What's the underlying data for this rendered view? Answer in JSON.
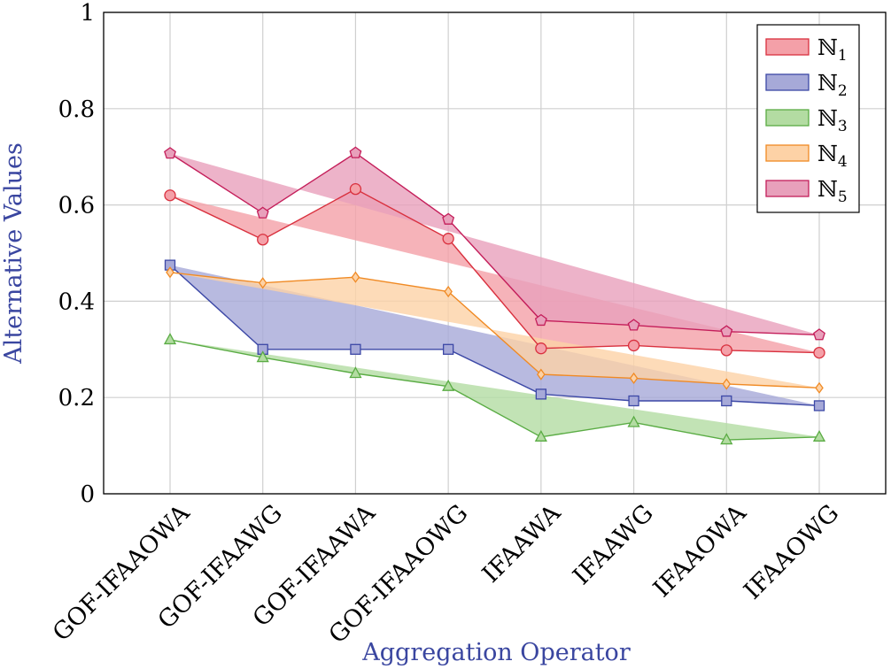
{
  "chart_data": {
    "type": "area",
    "title": "",
    "xlabel": "Aggregation Operator",
    "ylabel": "Alternative Values",
    "ylim": [
      0,
      1
    ],
    "yticks": [
      "0",
      "0.2",
      "0.4",
      "0.6",
      "0.8",
      "1"
    ],
    "grid": true,
    "legend_position": "top-right",
    "categories": [
      "GOF-IFAAOWA",
      "GOF-IFAAWG",
      "GOF-IFAAWA",
      "GOF-IFAAOWG",
      "IFAAWA",
      "IFAAWG",
      "IFAAOWA",
      "IFAAOWG"
    ],
    "series": [
      {
        "name": "ℕ",
        "sub": "1",
        "marker": "circle",
        "stroke": "#d9303e",
        "fill": "#f4a0a8",
        "values": [
          0.62,
          0.528,
          0.633,
          0.53,
          0.302,
          0.308,
          0.298,
          0.293
        ]
      },
      {
        "name": "ℕ",
        "sub": "2",
        "marker": "square",
        "stroke": "#3c48a6",
        "fill": "#a6a9d8",
        "values": [
          0.475,
          0.3,
          0.3,
          0.3,
          0.207,
          0.193,
          0.193,
          0.183
        ]
      },
      {
        "name": "ℕ",
        "sub": "3",
        "marker": "triangle",
        "stroke": "#5aac44",
        "fill": "#b3dca2",
        "values": [
          0.32,
          0.283,
          0.25,
          0.223,
          0.118,
          0.148,
          0.112,
          0.118
        ]
      },
      {
        "name": "ℕ",
        "sub": "4",
        "marker": "diamond",
        "stroke": "#f08a24",
        "fill": "#fdd2a6",
        "values": [
          0.46,
          0.438,
          0.45,
          0.42,
          0.248,
          0.24,
          0.228,
          0.22
        ]
      },
      {
        "name": "ℕ",
        "sub": "5",
        "marker": "pentagon",
        "stroke": "#c41e5a",
        "fill": "#e8a0bb",
        "values": [
          0.707,
          0.583,
          0.708,
          0.57,
          0.36,
          0.35,
          0.337,
          0.33
        ]
      }
    ]
  }
}
